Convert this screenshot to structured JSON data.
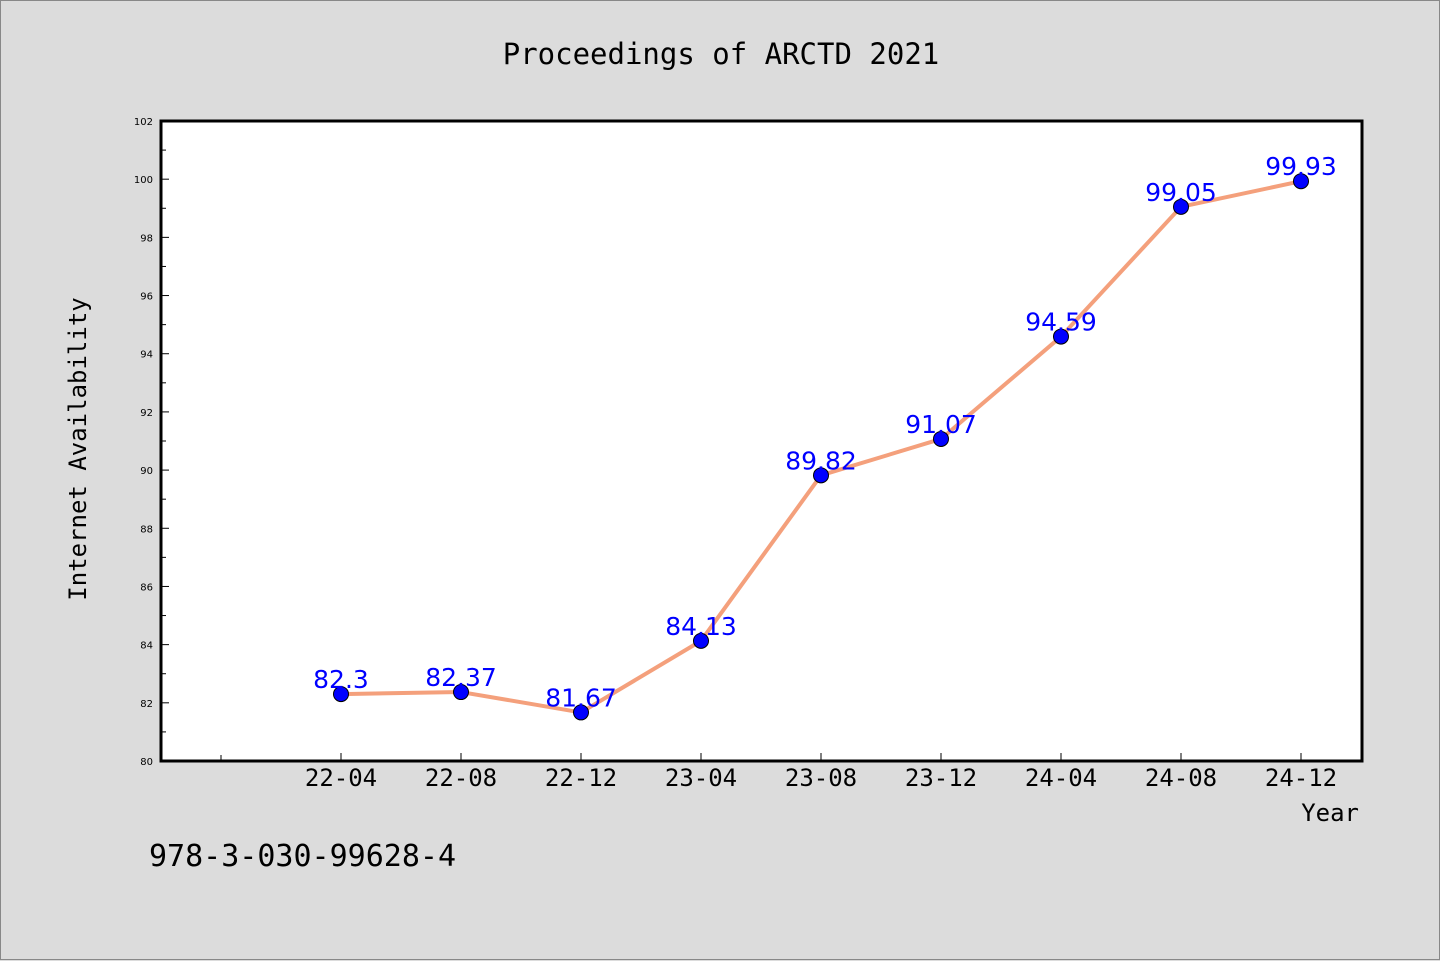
{
  "chart_data": {
    "type": "line",
    "title": "Proceedings of ARCTD 2021",
    "xlabel": "Year",
    "ylabel": "Internet Availability",
    "categories": [
      "22-04",
      "22-08",
      "22-12",
      "23-04",
      "23-08",
      "23-12",
      "24-04",
      "24-08",
      "24-12"
    ],
    "series": [
      {
        "values": [
          82.3,
          82.37,
          81.67,
          84.13,
          89.82,
          91.07,
          94.59,
          99.05,
          99.93
        ],
        "labels": [
          "82.3",
          "82.37",
          "81.67",
          "84.13",
          "89.82",
          "91.07",
          "94.59",
          "99.05",
          "99.93"
        ],
        "line_color": "#f4a07c",
        "marker_color": "#0000ff"
      }
    ],
    "ylim": [
      80,
      102
    ],
    "yticks": [
      80,
      82,
      84,
      86,
      88,
      90,
      92,
      94,
      96,
      98,
      100,
      102
    ],
    "grid": false,
    "legend": "none",
    "background_color": "#dcdcdc",
    "plot_background_color": "#ffffff"
  },
  "footer": {
    "isbn": "978-3-030-99628-4"
  }
}
